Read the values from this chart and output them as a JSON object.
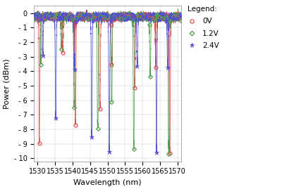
{
  "xlabel": "Wavelength (nm)",
  "ylabel": "Power (dBm)",
  "xlim": [
    1529,
    1571
  ],
  "ylim": [
    -10.2,
    0.5
  ],
  "ytick_vals": [
    0,
    -1,
    -2,
    -3,
    -4,
    -5,
    -6,
    -7,
    -8,
    -9,
    -10
  ],
  "ytick_labels": [
    "0",
    "- 1",
    "- 2",
    "- 3",
    "- 4",
    "- 5",
    "- 6",
    "- 7",
    "- 8",
    "- 9",
    "- 10"
  ],
  "xticks": [
    1530,
    1535,
    1540,
    1545,
    1550,
    1555,
    1560,
    1565,
    1570
  ],
  "colors": {
    "0V": "#e05050",
    "1.2V": "#50a050",
    "2.4V": "#5050d0"
  },
  "legend_title": "Legend:",
  "series_labels": [
    "0V",
    "1.2V",
    "2.4V"
  ],
  "notch_centers_0V": [
    1530.5,
    1537.2,
    1540.8,
    1547.8,
    1551.2,
    1557.8,
    1563.8,
    1567.8
  ],
  "notch_depths_0V": [
    -8.5,
    -2.2,
    -7.2,
    -6.2,
    -3.0,
    -4.6,
    -3.2,
    -9.2
  ],
  "notch_widths_0V": [
    0.25,
    0.35,
    0.35,
    0.35,
    0.35,
    0.35,
    0.35,
    0.35
  ],
  "notch_centers_12V": [
    1531.0,
    1536.8,
    1540.5,
    1547.2,
    1551.2,
    1557.5,
    1562.2,
    1567.5
  ],
  "notch_depths_12V": [
    -3.0,
    -2.0,
    -6.1,
    -7.5,
    -5.7,
    -8.8,
    -3.8,
    -9.2
  ],
  "notch_widths_12V": [
    0.3,
    0.35,
    0.35,
    0.35,
    0.35,
    0.35,
    0.35,
    0.35
  ],
  "notch_centers_24V": [
    1531.5,
    1535.2,
    1540.5,
    1545.5,
    1550.5,
    1558.5,
    1564.0,
    1567.2
  ],
  "notch_depths_24V": [
    -2.5,
    -6.7,
    -3.5,
    -8.1,
    -9.1,
    -3.2,
    -9.0,
    -3.2
  ],
  "notch_widths_24V": [
    0.3,
    0.3,
    0.35,
    0.3,
    0.3,
    0.35,
    0.3,
    0.35
  ],
  "baseline_level": -0.25,
  "noise_amp": 0.12,
  "figsize": [
    4.0,
    2.69
  ],
  "dpi": 100
}
